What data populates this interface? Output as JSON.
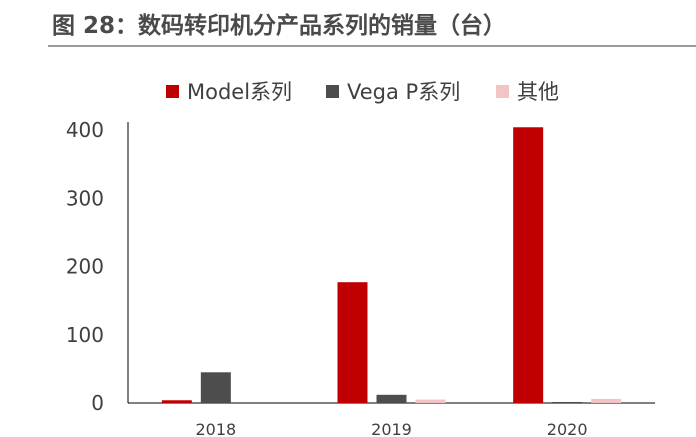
{
  "figure": {
    "title": "图 28：数码转印机分产品系列的销量（台）"
  },
  "colors": {
    "model": "#c00000",
    "vega": "#4d4d4d",
    "other": "#f2c4c6",
    "axis": "#000000",
    "title_rule": "#9a9a9a"
  },
  "chart_data": {
    "type": "bar",
    "title": "",
    "xlabel": "",
    "ylabel": "",
    "categories": [
      "2018",
      "2019",
      "2020"
    ],
    "ylim": [
      0,
      400
    ],
    "yticks": [
      0,
      100,
      200,
      300,
      400
    ],
    "grid": false,
    "legend_position": "top",
    "series": [
      {
        "name": "Model系列",
        "color": "#c00000",
        "values": [
          4,
          177,
          404
        ]
      },
      {
        "name": "Vega P系列",
        "color": "#4d4d4d",
        "values": [
          45,
          12,
          1
        ]
      },
      {
        "name": "其他",
        "color": "#f2c4c6",
        "values": [
          0,
          5,
          6
        ]
      }
    ]
  }
}
